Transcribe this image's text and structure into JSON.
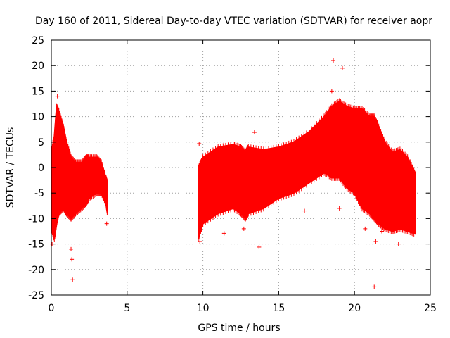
{
  "chart_data": {
    "type": "scatter",
    "title": "Day 160 of 2011, Sidereal Day-to-day VTEC variation (SDTVAR) for receiver aopr",
    "xlabel": "GPS time / hours",
    "ylabel": "SDTVAR / TECUs",
    "xlim": [
      0,
      25
    ],
    "ylim": [
      -25,
      25
    ],
    "xticks": [
      0,
      5,
      10,
      15,
      20,
      25
    ],
    "yticks": [
      -25,
      -20,
      -15,
      -10,
      -5,
      0,
      5,
      10,
      15,
      20,
      25
    ],
    "grid": true,
    "series_color": "#ff0000",
    "marker": "plus",
    "envelope": {
      "x": [
        0.0,
        0.2,
        0.35,
        0.5,
        0.8,
        1.0,
        1.3,
        1.6,
        2.0,
        2.3,
        2.5,
        3.0,
        3.3,
        3.6,
        3.7
      ],
      "upper": [
        3.0,
        6.0,
        12.0,
        11.0,
        8.0,
        5.0,
        2.0,
        1.0,
        1.0,
        2.0,
        2.0,
        2.0,
        1.0,
        -2.0,
        -3.0
      ],
      "lower": [
        -12.0,
        -14.0,
        -11.0,
        -9.0,
        -8.0,
        -9.0,
        -10.0,
        -9.0,
        -8.0,
        -7.0,
        -6.0,
        -5.0,
        -5.0,
        -7.0,
        -9.0
      ],
      "x2": [
        9.7,
        10.0,
        11.0,
        12.0,
        12.5,
        12.8,
        13.0,
        14.0,
        15.0,
        16.0,
        17.0,
        18.0,
        18.5,
        19.0,
        19.5,
        20.0,
        20.5,
        21.0,
        21.3,
        21.6,
        22.0,
        22.5,
        23.0,
        23.5,
        24.0
      ],
      "upper2": [
        0.0,
        2.0,
        4.0,
        4.5,
        4.0,
        3.0,
        4.0,
        3.5,
        4.0,
        5.0,
        7.0,
        10.0,
        12.0,
        13.0,
        12.0,
        11.5,
        11.5,
        10.0,
        10.0,
        8.0,
        5.0,
        3.0,
        3.5,
        2.0,
        -1.0
      ],
      "lower2": [
        -14.0,
        -11.0,
        -9.0,
        -8.0,
        -9.0,
        -10.0,
        -9.0,
        -8.0,
        -6.0,
        -5.0,
        -3.0,
        -1.0,
        -2.0,
        -2.0,
        -4.0,
        -5.0,
        -8.0,
        -9.0,
        -10.0,
        -11.0,
        -12.0,
        -12.5,
        -12.0,
        -12.5,
        -13.0
      ]
    },
    "outliers": [
      {
        "x": 0.1,
        "y": 5.0
      },
      {
        "x": 0.4,
        "y": 14.0
      },
      {
        "x": 1.35,
        "y": -18.0
      },
      {
        "x": 1.4,
        "y": -22.0
      },
      {
        "x": 1.3,
        "y": -16.0
      },
      {
        "x": 9.75,
        "y": 4.7
      },
      {
        "x": 11.4,
        "y": -12.9
      },
      {
        "x": 12.7,
        "y": -12.0
      },
      {
        "x": 13.4,
        "y": 6.9
      },
      {
        "x": 13.7,
        "y": -15.6
      },
      {
        "x": 16.7,
        "y": -8.5
      },
      {
        "x": 18.6,
        "y": 21.0
      },
      {
        "x": 18.5,
        "y": 15.0
      },
      {
        "x": 19.2,
        "y": 19.5
      },
      {
        "x": 19.0,
        "y": -8.0
      },
      {
        "x": 20.7,
        "y": -12.0
      },
      {
        "x": 21.3,
        "y": -23.4
      },
      {
        "x": 21.4,
        "y": -14.5
      },
      {
        "x": 21.8,
        "y": -12.5
      },
      {
        "x": 22.9,
        "y": -15.0
      },
      {
        "x": 0.05,
        "y": -15.0
      },
      {
        "x": 3.65,
        "y": -11.0
      },
      {
        "x": 9.8,
        "y": -14.5
      },
      {
        "x": 23.9,
        "y": -12.0
      }
    ]
  }
}
